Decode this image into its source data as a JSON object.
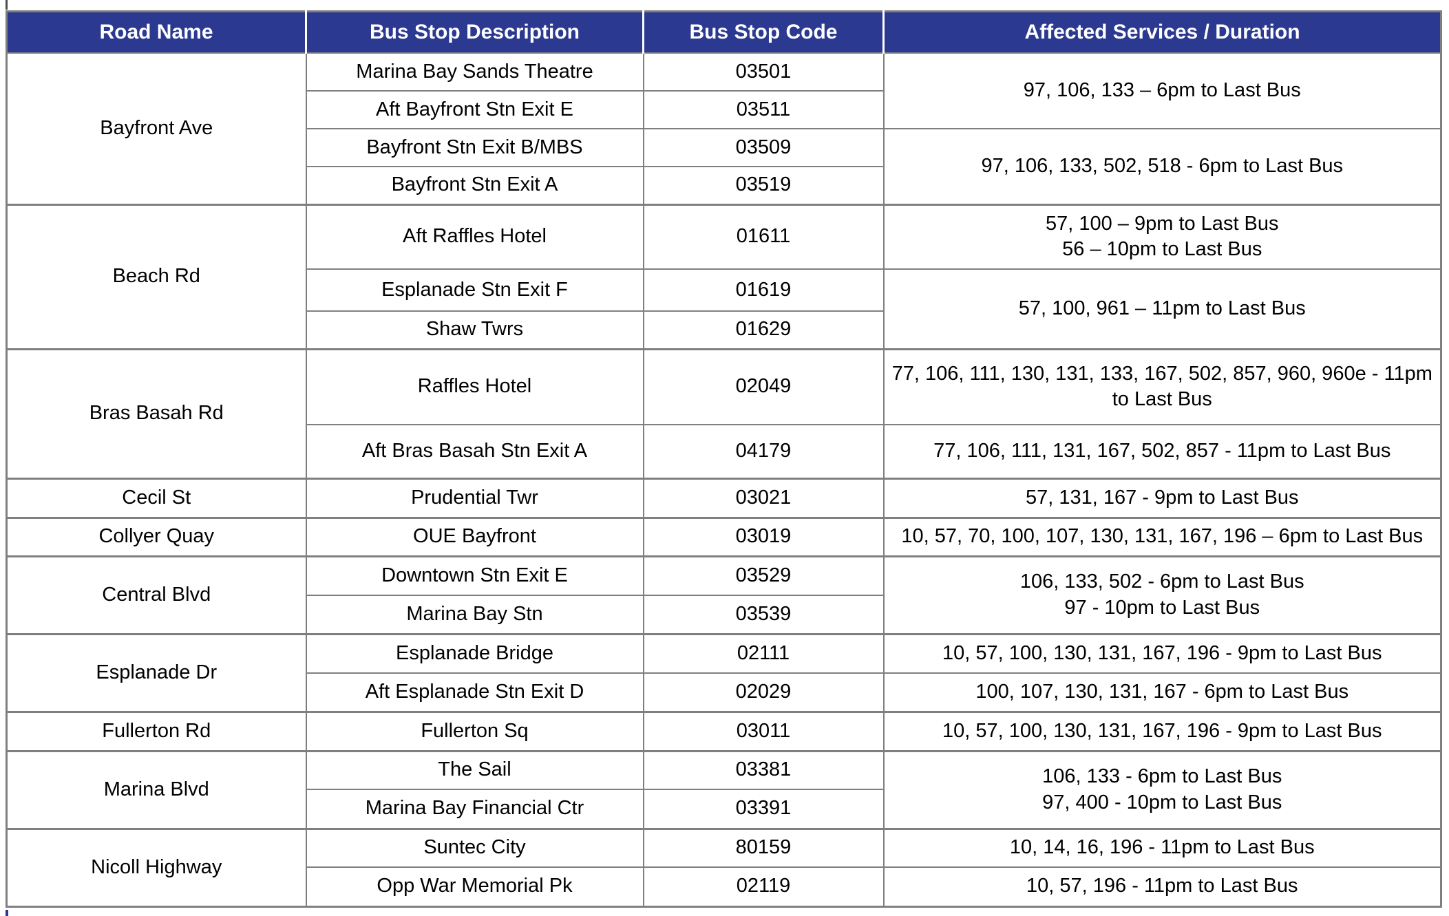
{
  "table": {
    "headers": [
      "Road Name",
      "Bus Stop Description",
      "Bus Stop Code",
      "Affected Services / Duration"
    ],
    "colors": {
      "header_bg": "#2B3990",
      "header_text": "#FFFFFF",
      "border": "#7F7F7F"
    },
    "sections": [
      {
        "road": "Bayfront Ave",
        "stops": [
          {
            "desc": "Marina Bay Sands Theatre",
            "code": "03501"
          },
          {
            "desc": "Aft Bayfront Stn Exit E",
            "code": "03511"
          },
          {
            "desc": "Bayfront Stn Exit B/MBS",
            "code": "03509"
          },
          {
            "desc": "Bayfront Stn Exit A",
            "code": "03519"
          }
        ],
        "service_groups": [
          {
            "start": 0,
            "rowspan": 2,
            "lines": [
              "97, 106, 133 – 6pm to Last Bus"
            ]
          },
          {
            "start": 2,
            "rowspan": 2,
            "lines": [
              "97, 106, 133, 502, 518  - 6pm to Last Bus"
            ]
          }
        ]
      },
      {
        "road": "Beach Rd",
        "stops": [
          {
            "desc": "Aft Raffles Hotel",
            "code": "01611"
          },
          {
            "desc": "Esplanade Stn Exit F",
            "code": "01619"
          },
          {
            "desc": "Shaw Twrs",
            "code": "01629"
          }
        ],
        "service_groups": [
          {
            "start": 0,
            "rowspan": 1,
            "lines": [
              "57, 100 – 9pm to Last Bus",
              "56 – 10pm to Last Bus"
            ]
          },
          {
            "start": 1,
            "rowspan": 2,
            "lines": [
              "57, 100, 961 – 11pm to Last Bus"
            ]
          }
        ]
      },
      {
        "road": "Bras Basah Rd",
        "stops": [
          {
            "desc": "Raffles Hotel",
            "code": "02049"
          },
          {
            "desc": "Aft Bras Basah Stn Exit A",
            "code": "04179"
          }
        ],
        "service_groups": [
          {
            "start": 0,
            "rowspan": 1,
            "lines": [
              "77, 106, 111, 130, 131, 133, 167, 502, 857, 960, 960e - 11pm to Last Bus"
            ]
          },
          {
            "start": 1,
            "rowspan": 1,
            "lines": [
              "77, 106, 111, 131, 167, 502, 857 - 11pm to Last Bus"
            ]
          }
        ]
      },
      {
        "road": "Cecil St",
        "stops": [
          {
            "desc": "Prudential Twr",
            "code": "03021"
          }
        ],
        "service_groups": [
          {
            "start": 0,
            "rowspan": 1,
            "lines": [
              "57, 131, 167 - 9pm to Last Bus"
            ]
          }
        ]
      },
      {
        "road": "Collyer Quay",
        "stops": [
          {
            "desc": "OUE Bayfront",
            "code": "03019"
          }
        ],
        "service_groups": [
          {
            "start": 0,
            "rowspan": 1,
            "lines": [
              "10, 57, 70, 100, 107, 130, 131, 167, 196 – 6pm to Last Bus"
            ]
          }
        ]
      },
      {
        "road": "Central Blvd",
        "stops": [
          {
            "desc": "Downtown Stn Exit E",
            "code": "03529"
          },
          {
            "desc": "Marina Bay Stn",
            "code": "03539"
          }
        ],
        "service_groups": [
          {
            "start": 0,
            "rowspan": 2,
            "lines": [
              "106, 133, 502 - 6pm to Last Bus",
              "97 - 10pm to Last Bus"
            ]
          }
        ]
      },
      {
        "road": "Esplanade Dr",
        "stops": [
          {
            "desc": "Esplanade Bridge",
            "code": "02111"
          },
          {
            "desc": "Aft Esplanade Stn Exit D",
            "code": "02029"
          }
        ],
        "service_groups": [
          {
            "start": 0,
            "rowspan": 1,
            "lines": [
              "10, 57, 100, 130, 131, 167, 196 - 9pm to Last Bus"
            ]
          },
          {
            "start": 1,
            "rowspan": 1,
            "lines": [
              "100, 107, 130, 131, 167 - 6pm to Last Bus"
            ]
          }
        ]
      },
      {
        "road": "Fullerton Rd",
        "stops": [
          {
            "desc": "Fullerton Sq",
            "code": "03011"
          }
        ],
        "service_groups": [
          {
            "start": 0,
            "rowspan": 1,
            "lines": [
              "10, 57, 100, 130, 131, 167, 196 - 9pm to Last Bus"
            ]
          }
        ]
      },
      {
        "road": "Marina Blvd",
        "stops": [
          {
            "desc": "The Sail",
            "code": "03381"
          },
          {
            "desc": "Marina Bay Financial Ctr",
            "code": "03391"
          }
        ],
        "service_groups": [
          {
            "start": 0,
            "rowspan": 2,
            "lines": [
              "106, 133 - 6pm to Last Bus",
              "97, 400 - 10pm to Last Bus"
            ]
          }
        ]
      },
      {
        "road": "Nicoll Highway",
        "stops": [
          {
            "desc": "Suntec City",
            "code": "80159"
          },
          {
            "desc": "Opp War Memorial Pk",
            "code": "02119"
          }
        ],
        "service_groups": [
          {
            "start": 0,
            "rowspan": 1,
            "lines": [
              "10, 14, 16, 196 - 11pm to Last Bus"
            ]
          },
          {
            "start": 1,
            "rowspan": 1,
            "lines": [
              "10, 57, 196 - 11pm to Last Bus"
            ]
          }
        ]
      }
    ]
  }
}
